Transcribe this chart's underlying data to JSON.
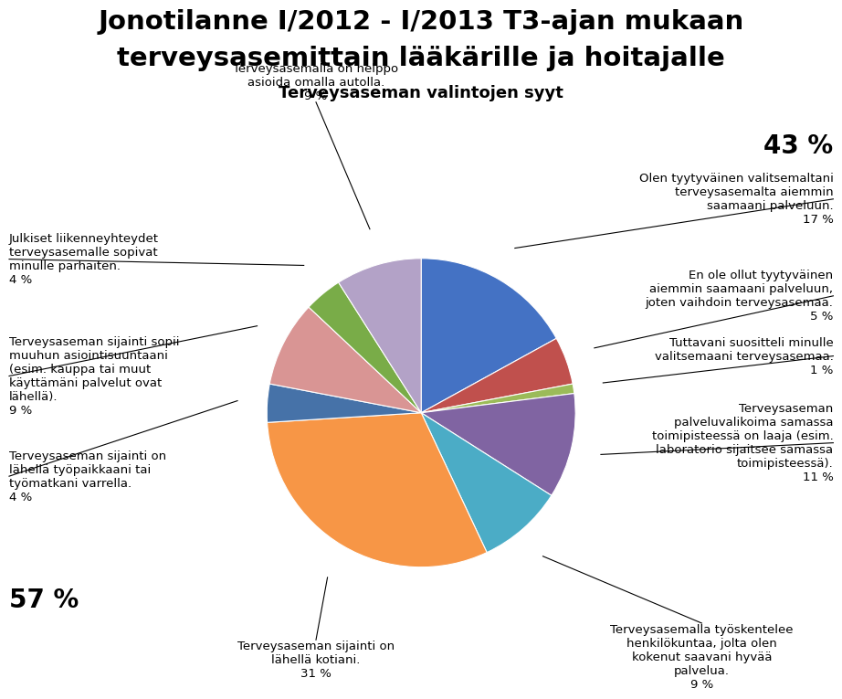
{
  "title_line1": "Jonotilanne I/2012 - I/2013 T3-ajan mukaan",
  "title_line2": "terveysasemittain lääkärille ja hoitajalle",
  "subtitle": "Terveysaseman valintojen syyt",
  "slices": [
    {
      "label": "Olen tyytyväinen valitsemaltani\nterveysasemalta aiemmin\nsaamaani palveluun.\n17 %",
      "value": 17,
      "color": "#4472C4"
    },
    {
      "label": "En ole ollut tyytyväinen\naiemmin saamaani palveluun,\njoten vaihdoin terveysasemaa.\n5 %",
      "value": 5,
      "color": "#C0504D"
    },
    {
      "label": "Tuttavani suositteli minulle\nvalitsemaani terveysasemaa.\n1 %",
      "value": 1,
      "color": "#9BBB59"
    },
    {
      "label": "Terveysaseman\npalveluvalikoima samassa\ntoimipisteessä on laaja (esim.\nlaboratorio sijaitsee samassa\ntoimipisteessä).\n11 %",
      "value": 11,
      "color": "#8064A2"
    },
    {
      "label": "Terveysasemalla työskentelee\nhenkilökuntaa, jolta olen\nkokenut saavani hyvää\npalvelua.\n9 %",
      "value": 9,
      "color": "#4BACC6"
    },
    {
      "label": "Terveysaseman sijainti on\nlähellä kotiani.\n31 %",
      "value": 31,
      "color": "#F79646"
    },
    {
      "label": "Terveysaseman sijainti on\nlähellä työpaikkaani tai\ntyömatkani varrella.\n4 %",
      "value": 4,
      "color": "#4672A8"
    },
    {
      "label": "Terveysaseman sijainti sopii\nmuuhun asiointisuuntaani\n(esim. kauppa tai muut\nkäyttämäni palvelut ovat\nlähellä).\n9 %",
      "value": 9,
      "color": "#D99594"
    },
    {
      "label": "Julkiset liikenneyhteydet\nterveysasemalle sopivat\nminulle parhaiten.\n4 %",
      "value": 4,
      "color": "#79AC48"
    },
    {
      "label": "Terveysasemalla on helppo\nasioida omalla autolla.\n9 %",
      "value": 9,
      "color": "#B3A2C7"
    }
  ],
  "annotation_43": "43 %",
  "annotation_57": "57 %",
  "background_color": "#FFFFFF",
  "title_fontsize": 21,
  "subtitle_fontsize": 13,
  "label_fontsize": 9.5,
  "annot_fontsize": 20
}
